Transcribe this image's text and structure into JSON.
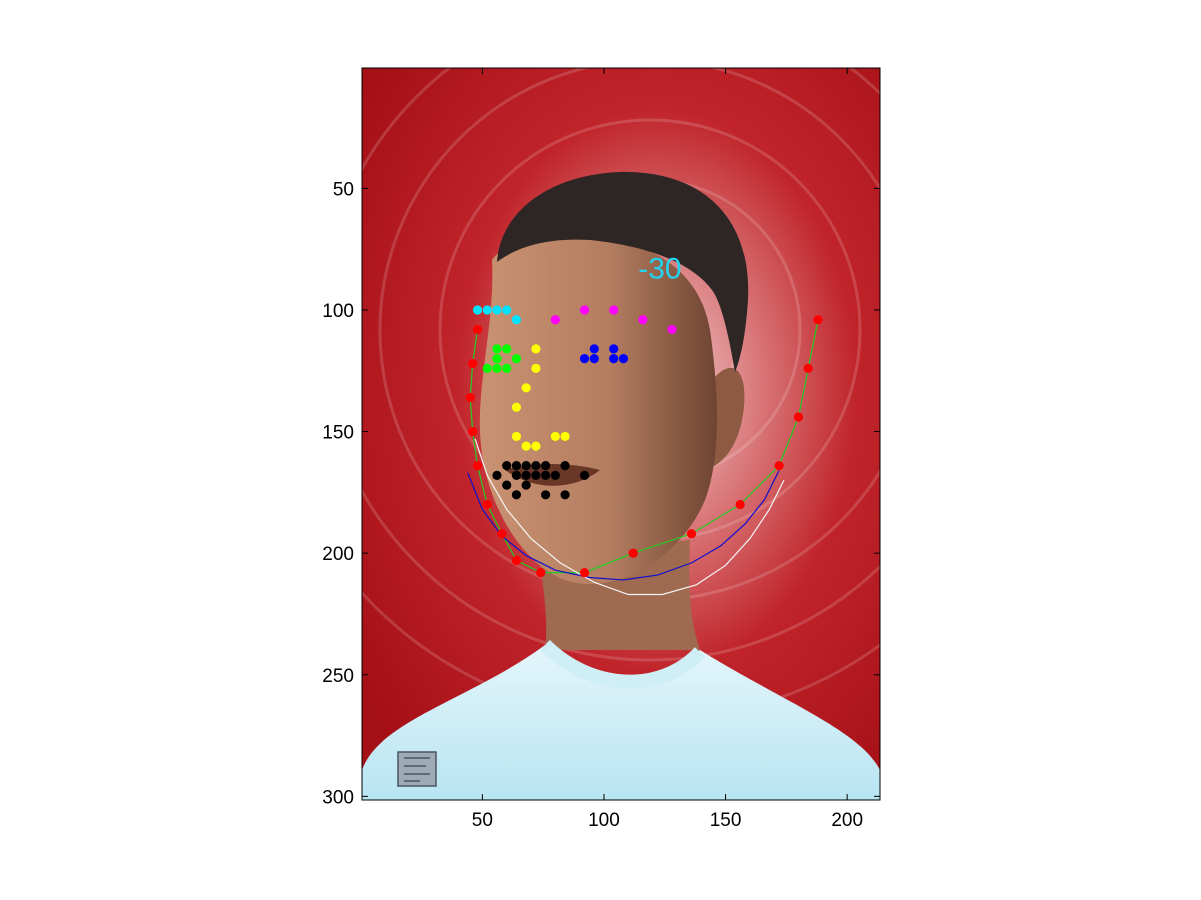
{
  "chart_data": {
    "type": "scatter",
    "title": "",
    "xlabel": "",
    "ylabel": "",
    "xlim": [
      0.5,
      213.5
    ],
    "ylim": [
      0.5,
      301.5
    ],
    "y_reversed": true,
    "grid": false,
    "xticks": [
      50,
      100,
      150,
      200
    ],
    "yticks": [
      50,
      100,
      150,
      200,
      250,
      300
    ],
    "xtick_labels": [
      "50",
      "100",
      "150",
      "200"
    ],
    "ytick_labels": [
      "50",
      "100",
      "150",
      "200",
      "250",
      "300"
    ],
    "annotation": {
      "text": "-30",
      "x": 123,
      "y": 87,
      "color": "#22d3f0"
    },
    "background": "painted portrait of a young man with short dark hair wearing a light blue sweater, in front of a red swirling background",
    "point_series": [
      {
        "color": "#00e5ff",
        "points": [
          [
            48,
            100
          ],
          [
            52,
            100
          ],
          [
            56,
            100
          ],
          [
            60,
            100
          ],
          [
            64,
            104
          ]
        ]
      },
      {
        "color": "#ff00ff",
        "points": [
          [
            80,
            104
          ],
          [
            92,
            100
          ],
          [
            104,
            100
          ],
          [
            116,
            104
          ],
          [
            128,
            108
          ]
        ]
      },
      {
        "color": "#00ff00",
        "points": [
          [
            56,
            116
          ],
          [
            60,
            116
          ],
          [
            64,
            120
          ],
          [
            60,
            124
          ],
          [
            56,
            124
          ],
          [
            52,
            124
          ],
          [
            56,
            120
          ]
        ]
      },
      {
        "color": "#0000ff",
        "points": [
          [
            92,
            120
          ],
          [
            96,
            116
          ],
          [
            104,
            116
          ],
          [
            108,
            120
          ],
          [
            104,
            120
          ],
          [
            96,
            120
          ]
        ]
      },
      {
        "color": "#ffff00",
        "points": [
          [
            72,
            116
          ],
          [
            72,
            124
          ],
          [
            68,
            132
          ],
          [
            64,
            140
          ],
          [
            64,
            152
          ],
          [
            68,
            156
          ],
          [
            72,
            156
          ],
          [
            80,
            152
          ],
          [
            84,
            152
          ]
        ]
      },
      {
        "color": "#000000",
        "points": [
          [
            56,
            168
          ],
          [
            60,
            164
          ],
          [
            64,
            164
          ],
          [
            68,
            164
          ],
          [
            72,
            164
          ],
          [
            76,
            164
          ],
          [
            84,
            164
          ],
          [
            92,
            168
          ],
          [
            84,
            176
          ],
          [
            76,
            176
          ],
          [
            68,
            172
          ],
          [
            64,
            176
          ],
          [
            60,
            172
          ],
          [
            64,
            168
          ],
          [
            68,
            168
          ],
          [
            72,
            168
          ],
          [
            76,
            168
          ],
          [
            80,
            168
          ]
        ]
      },
      {
        "color": "#ff0000",
        "points": [
          [
            48,
            108
          ],
          [
            46,
            122
          ],
          [
            45,
            136
          ],
          [
            46,
            150
          ],
          [
            48,
            164
          ],
          [
            52,
            180
          ],
          [
            58,
            192
          ],
          [
            64,
            203
          ],
          [
            74,
            208
          ],
          [
            92,
            208
          ],
          [
            112,
            200
          ],
          [
            136,
            192
          ],
          [
            156,
            180
          ],
          [
            172,
            164
          ],
          [
            180,
            144
          ],
          [
            184,
            124
          ],
          [
            188,
            104
          ]
        ]
      }
    ],
    "line_series": [
      {
        "color": "#22cc22",
        "points": [
          [
            48,
            108
          ],
          [
            46,
            122
          ],
          [
            45,
            136
          ],
          [
            46,
            150
          ],
          [
            48,
            164
          ],
          [
            52,
            180
          ],
          [
            58,
            192
          ],
          [
            64,
            203
          ],
          [
            74,
            208
          ],
          [
            92,
            208
          ],
          [
            112,
            200
          ],
          [
            136,
            192
          ],
          [
            156,
            180
          ],
          [
            172,
            164
          ],
          [
            180,
            144
          ],
          [
            184,
            124
          ],
          [
            188,
            104
          ]
        ]
      },
      {
        "color": "#1010cc",
        "points": [
          [
            44,
            167
          ],
          [
            50,
            182
          ],
          [
            58,
            193
          ],
          [
            68,
            201
          ],
          [
            80,
            207
          ],
          [
            94,
            210
          ],
          [
            108,
            211
          ],
          [
            122,
            209
          ],
          [
            136,
            204
          ],
          [
            148,
            197
          ],
          [
            158,
            188
          ],
          [
            166,
            178
          ],
          [
            172,
            166
          ]
        ]
      },
      {
        "color": "#f4f4f4",
        "points": [
          [
            47,
            153
          ],
          [
            52,
            168
          ],
          [
            60,
            182
          ],
          [
            70,
            194
          ],
          [
            82,
            204
          ],
          [
            96,
            212
          ],
          [
            110,
            217
          ],
          [
            124,
            217
          ],
          [
            138,
            213
          ],
          [
            150,
            205
          ],
          [
            160,
            194
          ],
          [
            168,
            182
          ],
          [
            174,
            170
          ]
        ]
      }
    ]
  }
}
